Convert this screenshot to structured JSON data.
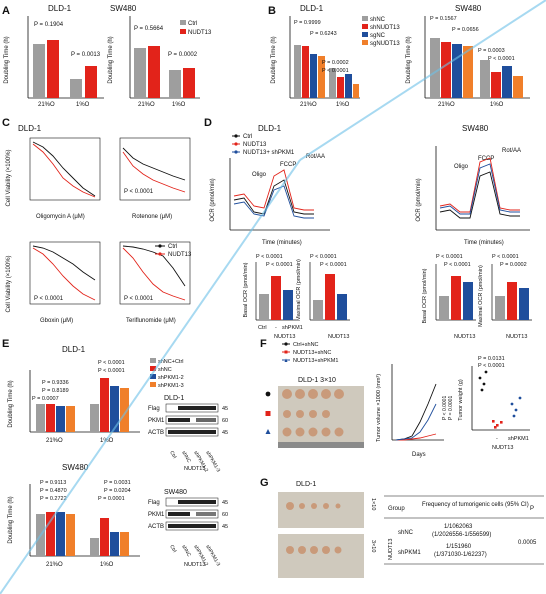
{
  "colors": {
    "gray": "#9e9e9e",
    "red": "#e2231a",
    "blue": "#1f4e9c",
    "orange": "#f07f2a",
    "black": "#111111",
    "watermark": "#6ec1e8"
  },
  "panels": {
    "A": {
      "letter": "A",
      "left": {
        "title": "DLD-1",
        "ylabel": "Doubling Time (h)",
        "yticks": [
          "0",
          "10",
          "20",
          "30"
        ],
        "xlabels": [
          "21%O",
          "1%O"
        ],
        "pvals": [
          "P = 0.1904",
          "P = 0.0013"
        ]
      },
      "right": {
        "title": "SW480",
        "ylabel": "Doubling Time (h)",
        "yticks": [
          "0",
          "10",
          "20",
          "30"
        ],
        "xlabels": [
          "21%O",
          "1%O"
        ],
        "pvals": [
          "P = 0.5664",
          "P = 0.0002"
        ],
        "legend": [
          "Ctrl",
          "NUDT13"
        ]
      }
    },
    "B": {
      "letter": "B",
      "left": {
        "title": "DLD-1",
        "ylabel": "Doubling Time (h)",
        "yticks": [
          "16",
          "18",
          "20",
          "22",
          "24"
        ],
        "xlabels": [
          "21%O",
          "1%O"
        ],
        "pvals": [
          "P = 0.9999",
          "P = 0.6243",
          "P = 0.0002",
          "P < 0.0001"
        ],
        "legend": [
          "shNC",
          "shNUDT13",
          "sgNC",
          "sgNUDT13"
        ]
      },
      "right": {
        "title": "SW480",
        "ylabel": "Doubling Time (h)",
        "yticks": [
          "16",
          "18",
          "20",
          "22",
          "24"
        ],
        "xlabels": [
          "21%O",
          "1%O"
        ],
        "pvals": [
          "P = 0.1567",
          "P = 0.0656",
          "P = 0.0003",
          "P < 0.0001"
        ]
      }
    },
    "C": {
      "letter": "C",
      "title": "DLD-1",
      "ylabel_top": "Cell Viability (×100%)",
      "ylabel_bottom": "Cell Viability (×100%)",
      "plots": [
        {
          "xlabel": "Oligomycin A (μM)",
          "p": ""
        },
        {
          "xlabel": "Rotenone (μM)",
          "p": "P < 0.0001"
        },
        {
          "xlabel": "Gboxin (μM)",
          "p": "P < 0.0001"
        },
        {
          "xlabel": "Teriflunomide (μM)",
          "p": "P < 0.0001"
        }
      ],
      "legend": [
        "Ctrl",
        "NUDT13"
      ]
    },
    "D": {
      "letter": "D",
      "dld_title": "DLD-1",
      "sw_title": "SW480",
      "legend": [
        "Ctrl",
        "NUDT13",
        "NUDT13+ shPKM1"
      ],
      "ylabel": "OCR (pmol/min)",
      "xlabel": "Time (minutes)",
      "injections": [
        "Oligo",
        "FCCP",
        "Rot/AA"
      ],
      "yticks": [
        "0",
        "50",
        "100",
        "150",
        "200",
        "250"
      ],
      "xticks": [
        "0",
        "20",
        "40",
        "60",
        "80"
      ],
      "bars": {
        "dld": [
          {
            "ylabel": "Basal OCR (pmol/min)",
            "pvals": [
              "P < 0.0001",
              "P < 0.0001"
            ]
          },
          {
            "ylabel": "Maximal OCR (pmol/min)",
            "pvals": [
              "P < 0.0001",
              "P < 0.0001"
            ]
          }
        ],
        "sw": [
          {
            "ylabel": "Basal OCR (pmol/min)",
            "pvals": [
              "P < 0.0001",
              "P < 0.0001"
            ]
          },
          {
            "ylabel": "Maximal OCR (pmol/min)",
            "pvals": [
              "P < 0.0001",
              "P = 0.0002"
            ]
          }
        ],
        "xlabels": [
          "Ctrl",
          "-",
          "shPKM1"
        ],
        "group": "NUDT13"
      }
    },
    "E": {
      "letter": "E",
      "top": {
        "title": "DLD-1",
        "ylabel": "Doubling Time (h)",
        "pvals_21": [
          "P = 0.9336",
          "P = 0.8189",
          "P = 0.0007"
        ],
        "pvals_1": [
          "P < 0.0001",
          "P < 0.0001"
        ],
        "legend": [
          "shNC+Ctrl",
          "shNC",
          "shPKM1-2",
          "shPKM1-3"
        ]
      },
      "bottom": {
        "title": "SW480",
        "ylabel": "Doubling Time (h)",
        "pvals_21": [
          "P = 0.9113",
          "P = 0.4870",
          "P = 0.2722"
        ],
        "pvals_1": [
          "P = 0.0031",
          "P = 0.0204",
          "P = 0.0001"
        ]
      },
      "xlabels": [
        "21%O",
        "1%O"
      ],
      "wb": {
        "dld_title": "DLD-1",
        "sw_title": "SW480",
        "rows": [
          "Flag",
          "PKM1",
          "ACTB"
        ],
        "kda": [
          "45",
          "60",
          "45"
        ],
        "lanes": [
          "Ctrl",
          "shNC",
          "shPKM1-2",
          "shPKM1-3"
        ],
        "group": "NUDT13"
      }
    },
    "F": {
      "letter": "F",
      "legend": [
        "Ctrl+shNC",
        "NUDT13+shNC",
        "NUDT13+shPKM1"
      ],
      "photo_title": "DLD-1 3×10",
      "ylabel": "Tumor volume ×1000 (mm³)",
      "xlabel": "Days",
      "xticks": [
        "0",
        "5",
        "10",
        "15",
        "20",
        "25"
      ],
      "pvals_line": [
        "P < 0.0001",
        "P = 0.0001"
      ],
      "weight": {
        "ylabel": "Tumor weight (g)",
        "pvals": [
          "P = 0.0131",
          "P < 0.0001"
        ],
        "xlabels": [
          "-",
          "-",
          "shPKM1"
        ],
        "group": "NUDT13"
      }
    },
    "G": {
      "letter": "G",
      "title": "DLD-1",
      "rowlabels": [
        "1×10",
        "3×10"
      ],
      "table": {
        "headers": [
          "Group",
          "Frequency of tumorigenic cells (95% CI)",
          "P"
        ],
        "rowgroup": "NUDT13",
        "rows": [
          {
            "name": "shNC",
            "freq": "1/1062063",
            "ci": "(1/2026556-1/556599)"
          },
          {
            "name": "shPKM1",
            "freq": "1/151960",
            "ci": "(1/371030-1/62237)"
          }
        ],
        "p": "0.0005"
      }
    }
  }
}
